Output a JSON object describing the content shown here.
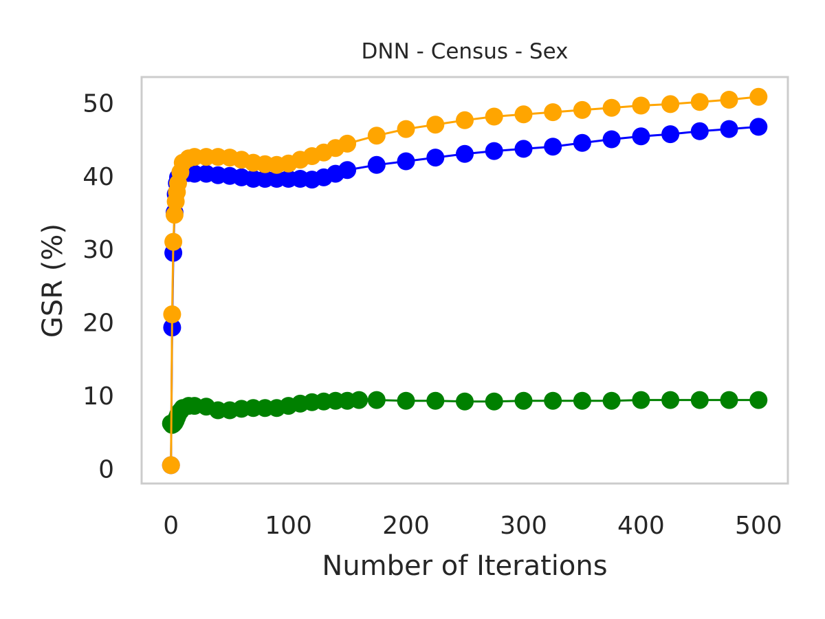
{
  "chart_data": {
    "type": "line",
    "title": "DNN - Census - Sex",
    "xlabel": "Number of Iterations",
    "ylabel": "GSR (%)",
    "xlim": [
      -25,
      525
    ],
    "ylim": [
      -2,
      53.5
    ],
    "xticks": [
      0,
      100,
      200,
      300,
      400,
      500
    ],
    "yticks": [
      0,
      10,
      20,
      30,
      40,
      50
    ],
    "grid": false,
    "legend": "none",
    "series": [
      {
        "color": "#0000ff",
        "marker": "circle",
        "x": [
          0,
          1,
          2,
          3,
          4,
          5,
          6,
          8,
          10,
          15,
          20,
          30,
          40,
          50,
          60,
          70,
          80,
          90,
          100,
          110,
          120,
          130,
          140,
          150,
          175,
          200,
          225,
          250,
          275,
          300,
          325,
          350,
          375,
          400,
          425,
          450,
          475,
          500
        ],
        "y": [
          0.5,
          19.3,
          29.5,
          35,
          37.5,
          39,
          39.8,
          40.3,
          40.5,
          40.4,
          40.3,
          40.3,
          40.1,
          40.0,
          39.8,
          39.6,
          39.6,
          39.6,
          39.6,
          39.6,
          39.5,
          39.8,
          40.3,
          40.8,
          41.5,
          42.0,
          42.5,
          43.0,
          43.4,
          43.7,
          44.0,
          44.5,
          45.0,
          45.4,
          45.7,
          46.1,
          46.4,
          46.7
        ]
      },
      {
        "color": "#008000",
        "marker": "circle",
        "x": [
          0,
          1,
          2,
          3,
          4,
          5,
          6,
          8,
          10,
          15,
          20,
          30,
          40,
          50,
          60,
          70,
          80,
          90,
          100,
          110,
          120,
          130,
          140,
          150,
          160,
          175,
          200,
          225,
          250,
          275,
          300,
          325,
          350,
          375,
          400,
          425,
          450,
          475,
          500
        ],
        "y": [
          6.2,
          6.0,
          6.1,
          6.3,
          6.6,
          7.0,
          7.4,
          7.9,
          8.3,
          8.6,
          8.6,
          8.5,
          8.0,
          8.0,
          8.2,
          8.3,
          8.3,
          8.3,
          8.6,
          8.9,
          9.1,
          9.2,
          9.3,
          9.3,
          9.4,
          9.4,
          9.3,
          9.3,
          9.2,
          9.2,
          9.3,
          9.3,
          9.3,
          9.3,
          9.4,
          9.4,
          9.4,
          9.4,
          9.4
        ]
      },
      {
        "color": "#ffa500",
        "marker": "circle",
        "x": [
          0,
          1,
          2,
          3,
          4,
          5,
          6,
          8,
          10,
          15,
          20,
          30,
          40,
          50,
          60,
          70,
          80,
          90,
          100,
          110,
          120,
          130,
          140,
          150,
          175,
          200,
          225,
          250,
          275,
          300,
          325,
          350,
          375,
          400,
          425,
          450,
          475,
          500
        ],
        "y": [
          0.5,
          21.1,
          31.0,
          34.7,
          36.5,
          37.8,
          39.0,
          40.5,
          41.8,
          42.4,
          42.6,
          42.6,
          42.6,
          42.5,
          42.2,
          41.8,
          41.6,
          41.5,
          41.7,
          42.2,
          42.7,
          43.2,
          43.8,
          44.4,
          45.5,
          46.4,
          47.0,
          47.6,
          48.1,
          48.4,
          48.7,
          49.0,
          49.3,
          49.6,
          49.8,
          50.1,
          50.4,
          50.8
        ]
      }
    ]
  }
}
